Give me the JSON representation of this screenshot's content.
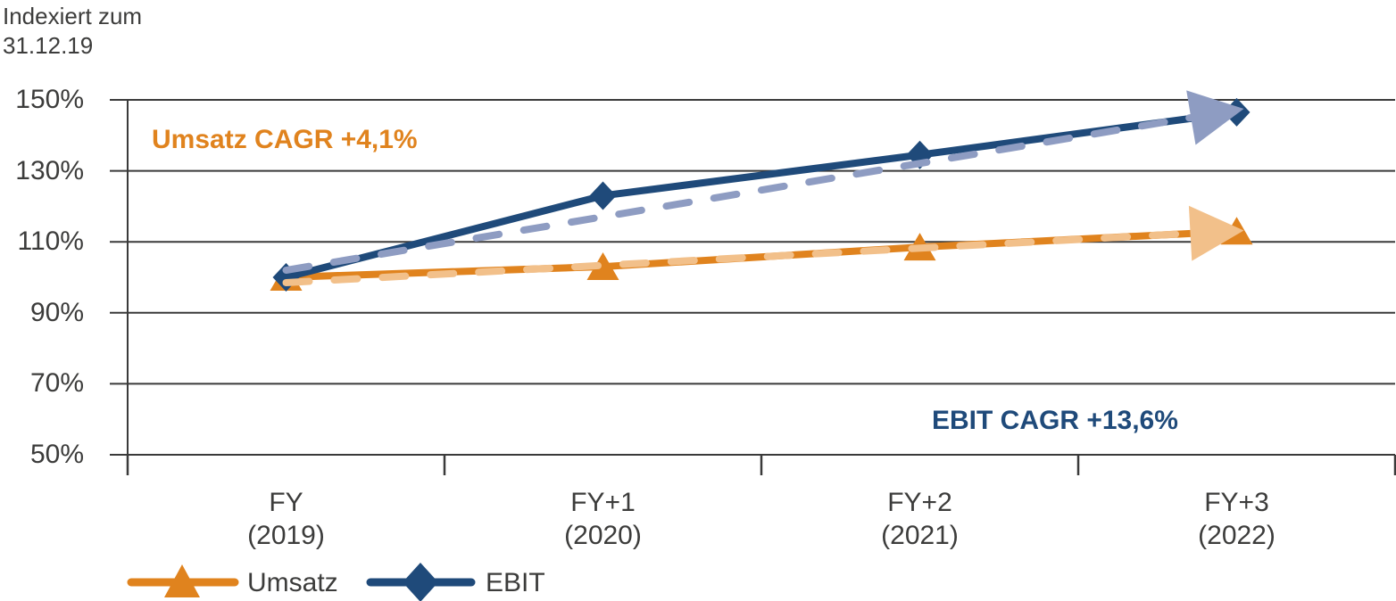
{
  "header": {
    "axis_title": "Indexiert zum\n31.12.19"
  },
  "colors": {
    "umsatz": "#E0831E",
    "umsatz_light": "#F2C08A",
    "ebit": "#1F4A7A",
    "ebit_light": "#8E9CC2",
    "text": "#3C3C3B",
    "grid": "#3A3A3A"
  },
  "chart_data": {
    "type": "line",
    "title": "Indexiert zum 31.12.19",
    "categories": [
      "FY (2019)",
      "FY+1 (2020)",
      "FY+2 (2021)",
      "FY+3 (2022)"
    ],
    "x_tick_labels": [
      "FY\n(2019)",
      "FY+1\n(2020)",
      "FY+2\n(2021)",
      "FY+3\n(2022)"
    ],
    "y_tick_labels": [
      "150%",
      "130%",
      "110%",
      "90%",
      "70%",
      "50%"
    ],
    "y_tick_values": [
      150,
      130,
      110,
      90,
      70,
      50
    ],
    "ylim": [
      50,
      150
    ],
    "grid": "horizontal",
    "legend_position": "bottom-left",
    "series": [
      {
        "name": "Umsatz",
        "marker": "triangle",
        "color_key": "umsatz",
        "values": [
          100,
          103,
          108.5,
          113
        ]
      },
      {
        "name": "EBIT",
        "marker": "diamond",
        "color_key": "ebit",
        "values": [
          100,
          123,
          134.5,
          146.5
        ]
      }
    ],
    "trend_lines": [
      {
        "series": "Umsatz",
        "style": "dashed-arrow",
        "color_key": "umsatz_light",
        "start_value": 98.5,
        "end_value": 113.2,
        "cagr": "+4,1%"
      },
      {
        "series": "EBIT",
        "style": "dashed-arrow",
        "color_key": "ebit_light",
        "start_value": 102,
        "end_value": 147.5,
        "cagr": "+13,6%"
      }
    ],
    "annotations": [
      {
        "text": "Umsatz CAGR +4,1%",
        "color_key": "umsatz"
      },
      {
        "text": "EBIT CAGR +13,6%",
        "color_key": "ebit"
      }
    ],
    "legend": [
      {
        "label": "Umsatz",
        "marker": "triangle",
        "color_key": "umsatz"
      },
      {
        "label": "EBIT",
        "marker": "diamond",
        "color_key": "ebit"
      }
    ]
  }
}
